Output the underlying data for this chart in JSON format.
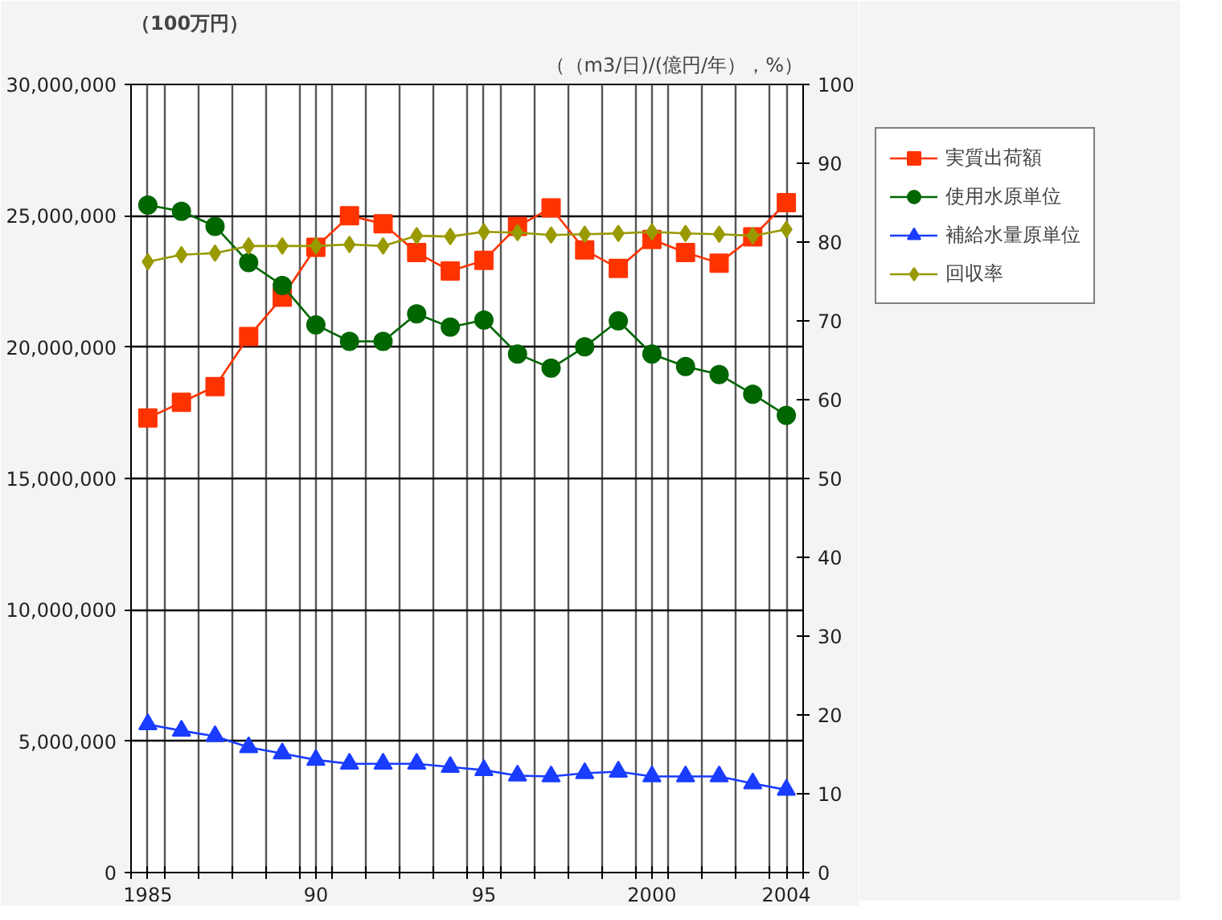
{
  "chart_data": {
    "type": "line",
    "ylabel": "（100万円）",
    "y2label": "（（m3/日)/(億円/年），%）",
    "x": [
      1985,
      1986,
      1987,
      1988,
      1989,
      1990,
      1991,
      1992,
      1993,
      1994,
      1995,
      1996,
      1997,
      1998,
      1999,
      2000,
      2001,
      2002,
      2003,
      2004
    ],
    "xlim": [
      1984.5,
      2004.5
    ],
    "xticks": [
      {
        "value": 1985,
        "label": "1985"
      },
      {
        "value": 1990,
        "label": "90"
      },
      {
        "value": 1995,
        "label": "95"
      },
      {
        "value": 2000,
        "label": "2000"
      },
      {
        "value": 2004,
        "label": "2004"
      },
      {
        "value": 1984.5,
        "label": null
      },
      {
        "value": 1985.5,
        "label": null
      },
      {
        "value": 1986.5,
        "label": null
      },
      {
        "value": 1987.5,
        "label": null
      },
      {
        "value": 1988.5,
        "label": null
      },
      {
        "value": 1989.5,
        "label": null
      },
      {
        "value": 1990.5,
        "label": null
      },
      {
        "value": 1991.5,
        "label": null
      },
      {
        "value": 1992.5,
        "label": null
      },
      {
        "value": 1993.5,
        "label": null
      },
      {
        "value": 1994.5,
        "label": null
      },
      {
        "value": 1995.5,
        "label": null
      },
      {
        "value": 1996.5,
        "label": null
      },
      {
        "value": 1997.5,
        "label": null
      },
      {
        "value": 1998.5,
        "label": null
      },
      {
        "value": 1999.5,
        "label": null
      },
      {
        "value": 2000.5,
        "label": null
      },
      {
        "value": 2001.5,
        "label": null
      },
      {
        "value": 2002.5,
        "label": null
      },
      {
        "value": 2003.5,
        "label": null
      },
      {
        "value": 2004.5,
        "label": null
      }
    ],
    "ylim": [
      0,
      30000000
    ],
    "yticks": [
      {
        "value": 0,
        "label": "0"
      },
      {
        "value": 5000000,
        "label": "5,000,000"
      },
      {
        "value": 10000000,
        "label": "10,000,000"
      },
      {
        "value": 15000000,
        "label": "15,000,000"
      },
      {
        "value": 20000000,
        "label": "20,000,000"
      },
      {
        "value": 25000000,
        "label": "25,000,000"
      },
      {
        "value": 30000000,
        "label": "30,000,000"
      }
    ],
    "y2lim": [
      0,
      100
    ],
    "y2ticks": [
      0,
      10,
      20,
      30,
      40,
      50,
      60,
      70,
      80,
      90,
      100
    ],
    "grid": true,
    "legend": "right",
    "series": [
      {
        "name": "実質出荷額",
        "color": "#ff3300",
        "marker": "square",
        "values": [
          17300000,
          17900000,
          18500000,
          20400000,
          21900000,
          23800000,
          25000000,
          24700000,
          23600000,
          22900000,
          23300000,
          24600000,
          25300000,
          23700000,
          23000000,
          24100000,
          23600000,
          23200000,
          24200000,
          25500000
        ]
      },
      {
        "name": "使用水原単位",
        "color": "#006600",
        "marker": "circle",
        "axis": "y2",
        "values": [
          84.7,
          83.9,
          82.0,
          77.4,
          74.5,
          69.5,
          67.4,
          67.4,
          70.9,
          69.2,
          70.1,
          65.8,
          64.0,
          66.7,
          70.0,
          65.8,
          64.2,
          63.2,
          60.7,
          58.0
        ]
      },
      {
        "name": "補給水量原単位",
        "color": "#1a3cff",
        "marker": "triangle",
        "axis": "y2",
        "values": [
          18.8,
          18.0,
          17.3,
          15.9,
          15.1,
          14.3,
          13.8,
          13.8,
          13.8,
          13.4,
          13.0,
          12.3,
          12.2,
          12.6,
          12.8,
          12.2,
          12.2,
          12.2,
          11.3,
          10.5
        ]
      },
      {
        "name": "回収率",
        "color": "#999900",
        "marker": "diamond",
        "axis": "y2",
        "values": [
          77.5,
          78.4,
          78.6,
          79.5,
          79.5,
          79.5,
          79.7,
          79.5,
          80.8,
          80.7,
          81.3,
          81.2,
          80.9,
          81.0,
          81.1,
          81.3,
          81.1,
          81.0,
          80.8,
          81.6
        ]
      }
    ]
  }
}
